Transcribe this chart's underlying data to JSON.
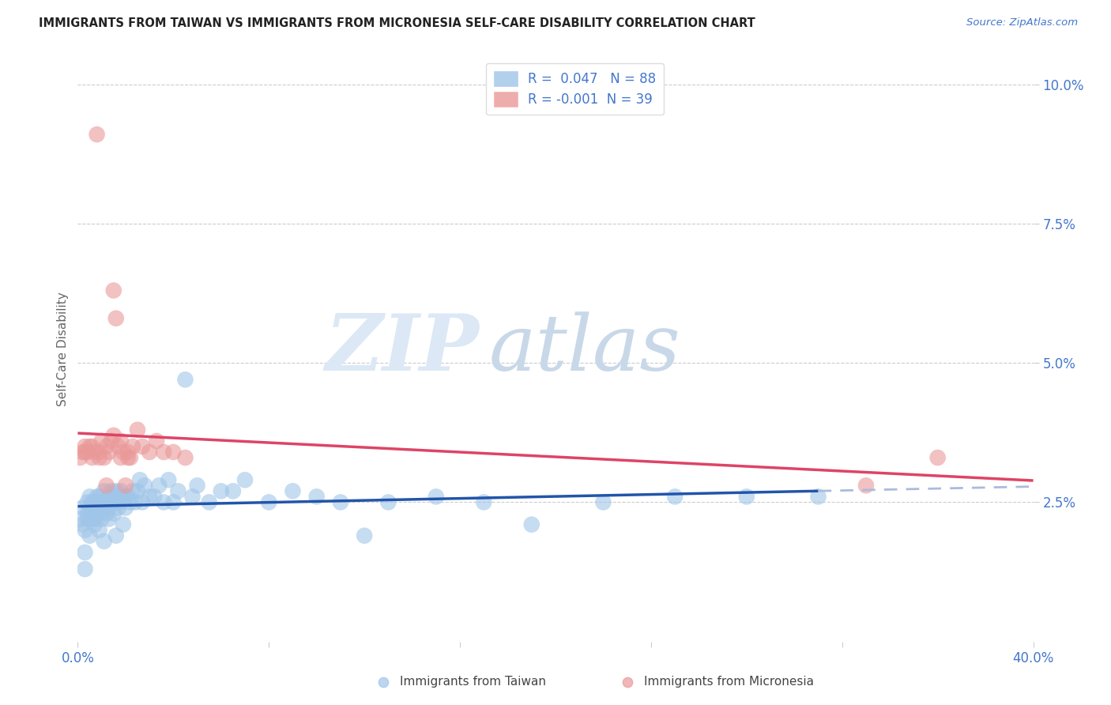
{
  "title": "IMMIGRANTS FROM TAIWAN VS IMMIGRANTS FROM MICRONESIA SELF-CARE DISABILITY CORRELATION CHART",
  "source": "Source: ZipAtlas.com",
  "ylabel": "Self-Care Disability",
  "xlim": [
    0.0,
    0.4
  ],
  "ylim": [
    0.0,
    0.105
  ],
  "taiwan_color": "#9fc5e8",
  "micronesia_color": "#ea9999",
  "taiwan_line_color": "#2255aa",
  "micronesia_line_color": "#dd4466",
  "taiwan_R": 0.047,
  "taiwan_N": 88,
  "micronesia_R": -0.001,
  "micronesia_N": 39,
  "watermark_zip": "ZIP",
  "watermark_atlas": "atlas",
  "taiwan_x": [
    0.001,
    0.002,
    0.002,
    0.003,
    0.003,
    0.004,
    0.004,
    0.004,
    0.005,
    0.005,
    0.005,
    0.006,
    0.006,
    0.006,
    0.007,
    0.007,
    0.007,
    0.008,
    0.008,
    0.008,
    0.009,
    0.009,
    0.009,
    0.01,
    0.01,
    0.01,
    0.011,
    0.011,
    0.012,
    0.012,
    0.013,
    0.013,
    0.014,
    0.014,
    0.015,
    0.015,
    0.016,
    0.016,
    0.017,
    0.017,
    0.018,
    0.018,
    0.019,
    0.02,
    0.02,
    0.021,
    0.022,
    0.023,
    0.024,
    0.025,
    0.026,
    0.027,
    0.028,
    0.03,
    0.032,
    0.034,
    0.036,
    0.038,
    0.04,
    0.042,
    0.045,
    0.048,
    0.05,
    0.055,
    0.06,
    0.065,
    0.07,
    0.08,
    0.09,
    0.1,
    0.11,
    0.12,
    0.13,
    0.15,
    0.17,
    0.19,
    0.22,
    0.25,
    0.28,
    0.31,
    0.003,
    0.005,
    0.007,
    0.009,
    0.011,
    0.013,
    0.016,
    0.019
  ],
  "taiwan_y": [
    0.022,
    0.021,
    0.024,
    0.013,
    0.02,
    0.022,
    0.025,
    0.023,
    0.024,
    0.022,
    0.026,
    0.023,
    0.025,
    0.022,
    0.025,
    0.022,
    0.024,
    0.024,
    0.026,
    0.023,
    0.025,
    0.023,
    0.026,
    0.025,
    0.022,
    0.024,
    0.025,
    0.027,
    0.025,
    0.023,
    0.026,
    0.024,
    0.025,
    0.027,
    0.026,
    0.023,
    0.025,
    0.027,
    0.026,
    0.024,
    0.025,
    0.027,
    0.026,
    0.026,
    0.024,
    0.026,
    0.025,
    0.027,
    0.025,
    0.027,
    0.029,
    0.025,
    0.028,
    0.026,
    0.026,
    0.028,
    0.025,
    0.029,
    0.025,
    0.027,
    0.047,
    0.026,
    0.028,
    0.025,
    0.027,
    0.027,
    0.029,
    0.025,
    0.027,
    0.026,
    0.025,
    0.019,
    0.025,
    0.026,
    0.025,
    0.021,
    0.025,
    0.026,
    0.026,
    0.026,
    0.016,
    0.019,
    0.021,
    0.02,
    0.018,
    0.022,
    0.019,
    0.021
  ],
  "micronesia_x": [
    0.001,
    0.002,
    0.003,
    0.004,
    0.005,
    0.006,
    0.007,
    0.008,
    0.009,
    0.01,
    0.011,
    0.012,
    0.013,
    0.014,
    0.015,
    0.016,
    0.017,
    0.018,
    0.019,
    0.02,
    0.021,
    0.022,
    0.023,
    0.025,
    0.027,
    0.03,
    0.033,
    0.036,
    0.04,
    0.045,
    0.003,
    0.006,
    0.009,
    0.012,
    0.015,
    0.018,
    0.021,
    0.33,
    0.36
  ],
  "micronesia_y": [
    0.033,
    0.034,
    0.035,
    0.034,
    0.035,
    0.033,
    0.034,
    0.091,
    0.034,
    0.036,
    0.033,
    0.035,
    0.034,
    0.036,
    0.063,
    0.058,
    0.035,
    0.036,
    0.034,
    0.028,
    0.033,
    0.033,
    0.035,
    0.038,
    0.035,
    0.034,
    0.036,
    0.034,
    0.034,
    0.033,
    0.034,
    0.035,
    0.033,
    0.028,
    0.037,
    0.033,
    0.034,
    0.028,
    0.033
  ]
}
